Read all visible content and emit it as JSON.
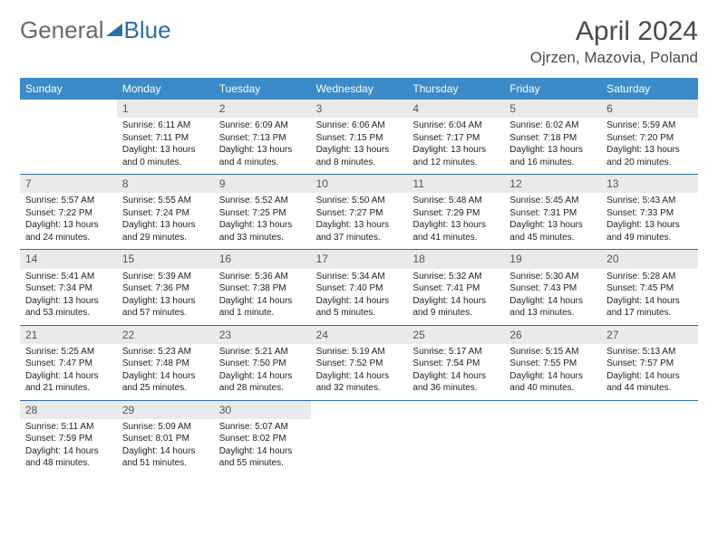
{
  "logo": {
    "text1": "General",
    "text2": "Blue"
  },
  "header": {
    "title": "April 2024",
    "location": "Ojrzen, Mazovia, Poland"
  },
  "colors": {
    "accent": "#3b8bc9",
    "border": "#2f6fa8",
    "daynum_bg": "#eaeaea"
  },
  "day_labels": [
    "Sunday",
    "Monday",
    "Tuesday",
    "Wednesday",
    "Thursday",
    "Friday",
    "Saturday"
  ],
  "weeks": [
    [
      {
        "n": "",
        "sunrise": "",
        "sunset": "",
        "daylight1": "",
        "daylight2": ""
      },
      {
        "n": "1",
        "sunrise": "Sunrise: 6:11 AM",
        "sunset": "Sunset: 7:11 PM",
        "daylight1": "Daylight: 13 hours",
        "daylight2": "and 0 minutes."
      },
      {
        "n": "2",
        "sunrise": "Sunrise: 6:09 AM",
        "sunset": "Sunset: 7:13 PM",
        "daylight1": "Daylight: 13 hours",
        "daylight2": "and 4 minutes."
      },
      {
        "n": "3",
        "sunrise": "Sunrise: 6:06 AM",
        "sunset": "Sunset: 7:15 PM",
        "daylight1": "Daylight: 13 hours",
        "daylight2": "and 8 minutes."
      },
      {
        "n": "4",
        "sunrise": "Sunrise: 6:04 AM",
        "sunset": "Sunset: 7:17 PM",
        "daylight1": "Daylight: 13 hours",
        "daylight2": "and 12 minutes."
      },
      {
        "n": "5",
        "sunrise": "Sunrise: 6:02 AM",
        "sunset": "Sunset: 7:18 PM",
        "daylight1": "Daylight: 13 hours",
        "daylight2": "and 16 minutes."
      },
      {
        "n": "6",
        "sunrise": "Sunrise: 5:59 AM",
        "sunset": "Sunset: 7:20 PM",
        "daylight1": "Daylight: 13 hours",
        "daylight2": "and 20 minutes."
      }
    ],
    [
      {
        "n": "7",
        "sunrise": "Sunrise: 5:57 AM",
        "sunset": "Sunset: 7:22 PM",
        "daylight1": "Daylight: 13 hours",
        "daylight2": "and 24 minutes."
      },
      {
        "n": "8",
        "sunrise": "Sunrise: 5:55 AM",
        "sunset": "Sunset: 7:24 PM",
        "daylight1": "Daylight: 13 hours",
        "daylight2": "and 29 minutes."
      },
      {
        "n": "9",
        "sunrise": "Sunrise: 5:52 AM",
        "sunset": "Sunset: 7:25 PM",
        "daylight1": "Daylight: 13 hours",
        "daylight2": "and 33 minutes."
      },
      {
        "n": "10",
        "sunrise": "Sunrise: 5:50 AM",
        "sunset": "Sunset: 7:27 PM",
        "daylight1": "Daylight: 13 hours",
        "daylight2": "and 37 minutes."
      },
      {
        "n": "11",
        "sunrise": "Sunrise: 5:48 AM",
        "sunset": "Sunset: 7:29 PM",
        "daylight1": "Daylight: 13 hours",
        "daylight2": "and 41 minutes."
      },
      {
        "n": "12",
        "sunrise": "Sunrise: 5:45 AM",
        "sunset": "Sunset: 7:31 PM",
        "daylight1": "Daylight: 13 hours",
        "daylight2": "and 45 minutes."
      },
      {
        "n": "13",
        "sunrise": "Sunrise: 5:43 AM",
        "sunset": "Sunset: 7:33 PM",
        "daylight1": "Daylight: 13 hours",
        "daylight2": "and 49 minutes."
      }
    ],
    [
      {
        "n": "14",
        "sunrise": "Sunrise: 5:41 AM",
        "sunset": "Sunset: 7:34 PM",
        "daylight1": "Daylight: 13 hours",
        "daylight2": "and 53 minutes."
      },
      {
        "n": "15",
        "sunrise": "Sunrise: 5:39 AM",
        "sunset": "Sunset: 7:36 PM",
        "daylight1": "Daylight: 13 hours",
        "daylight2": "and 57 minutes."
      },
      {
        "n": "16",
        "sunrise": "Sunrise: 5:36 AM",
        "sunset": "Sunset: 7:38 PM",
        "daylight1": "Daylight: 14 hours",
        "daylight2": "and 1 minute."
      },
      {
        "n": "17",
        "sunrise": "Sunrise: 5:34 AM",
        "sunset": "Sunset: 7:40 PM",
        "daylight1": "Daylight: 14 hours",
        "daylight2": "and 5 minutes."
      },
      {
        "n": "18",
        "sunrise": "Sunrise: 5:32 AM",
        "sunset": "Sunset: 7:41 PM",
        "daylight1": "Daylight: 14 hours",
        "daylight2": "and 9 minutes."
      },
      {
        "n": "19",
        "sunrise": "Sunrise: 5:30 AM",
        "sunset": "Sunset: 7:43 PM",
        "daylight1": "Daylight: 14 hours",
        "daylight2": "and 13 minutes."
      },
      {
        "n": "20",
        "sunrise": "Sunrise: 5:28 AM",
        "sunset": "Sunset: 7:45 PM",
        "daylight1": "Daylight: 14 hours",
        "daylight2": "and 17 minutes."
      }
    ],
    [
      {
        "n": "21",
        "sunrise": "Sunrise: 5:25 AM",
        "sunset": "Sunset: 7:47 PM",
        "daylight1": "Daylight: 14 hours",
        "daylight2": "and 21 minutes."
      },
      {
        "n": "22",
        "sunrise": "Sunrise: 5:23 AM",
        "sunset": "Sunset: 7:48 PM",
        "daylight1": "Daylight: 14 hours",
        "daylight2": "and 25 minutes."
      },
      {
        "n": "23",
        "sunrise": "Sunrise: 5:21 AM",
        "sunset": "Sunset: 7:50 PM",
        "daylight1": "Daylight: 14 hours",
        "daylight2": "and 28 minutes."
      },
      {
        "n": "24",
        "sunrise": "Sunrise: 5:19 AM",
        "sunset": "Sunset: 7:52 PM",
        "daylight1": "Daylight: 14 hours",
        "daylight2": "and 32 minutes."
      },
      {
        "n": "25",
        "sunrise": "Sunrise: 5:17 AM",
        "sunset": "Sunset: 7:54 PM",
        "daylight1": "Daylight: 14 hours",
        "daylight2": "and 36 minutes."
      },
      {
        "n": "26",
        "sunrise": "Sunrise: 5:15 AM",
        "sunset": "Sunset: 7:55 PM",
        "daylight1": "Daylight: 14 hours",
        "daylight2": "and 40 minutes."
      },
      {
        "n": "27",
        "sunrise": "Sunrise: 5:13 AM",
        "sunset": "Sunset: 7:57 PM",
        "daylight1": "Daylight: 14 hours",
        "daylight2": "and 44 minutes."
      }
    ],
    [
      {
        "n": "28",
        "sunrise": "Sunrise: 5:11 AM",
        "sunset": "Sunset: 7:59 PM",
        "daylight1": "Daylight: 14 hours",
        "daylight2": "and 48 minutes."
      },
      {
        "n": "29",
        "sunrise": "Sunrise: 5:09 AM",
        "sunset": "Sunset: 8:01 PM",
        "daylight1": "Daylight: 14 hours",
        "daylight2": "and 51 minutes."
      },
      {
        "n": "30",
        "sunrise": "Sunrise: 5:07 AM",
        "sunset": "Sunset: 8:02 PM",
        "daylight1": "Daylight: 14 hours",
        "daylight2": "and 55 minutes."
      },
      {
        "n": "",
        "sunrise": "",
        "sunset": "",
        "daylight1": "",
        "daylight2": ""
      },
      {
        "n": "",
        "sunrise": "",
        "sunset": "",
        "daylight1": "",
        "daylight2": ""
      },
      {
        "n": "",
        "sunrise": "",
        "sunset": "",
        "daylight1": "",
        "daylight2": ""
      },
      {
        "n": "",
        "sunrise": "",
        "sunset": "",
        "daylight1": "",
        "daylight2": ""
      }
    ]
  ]
}
